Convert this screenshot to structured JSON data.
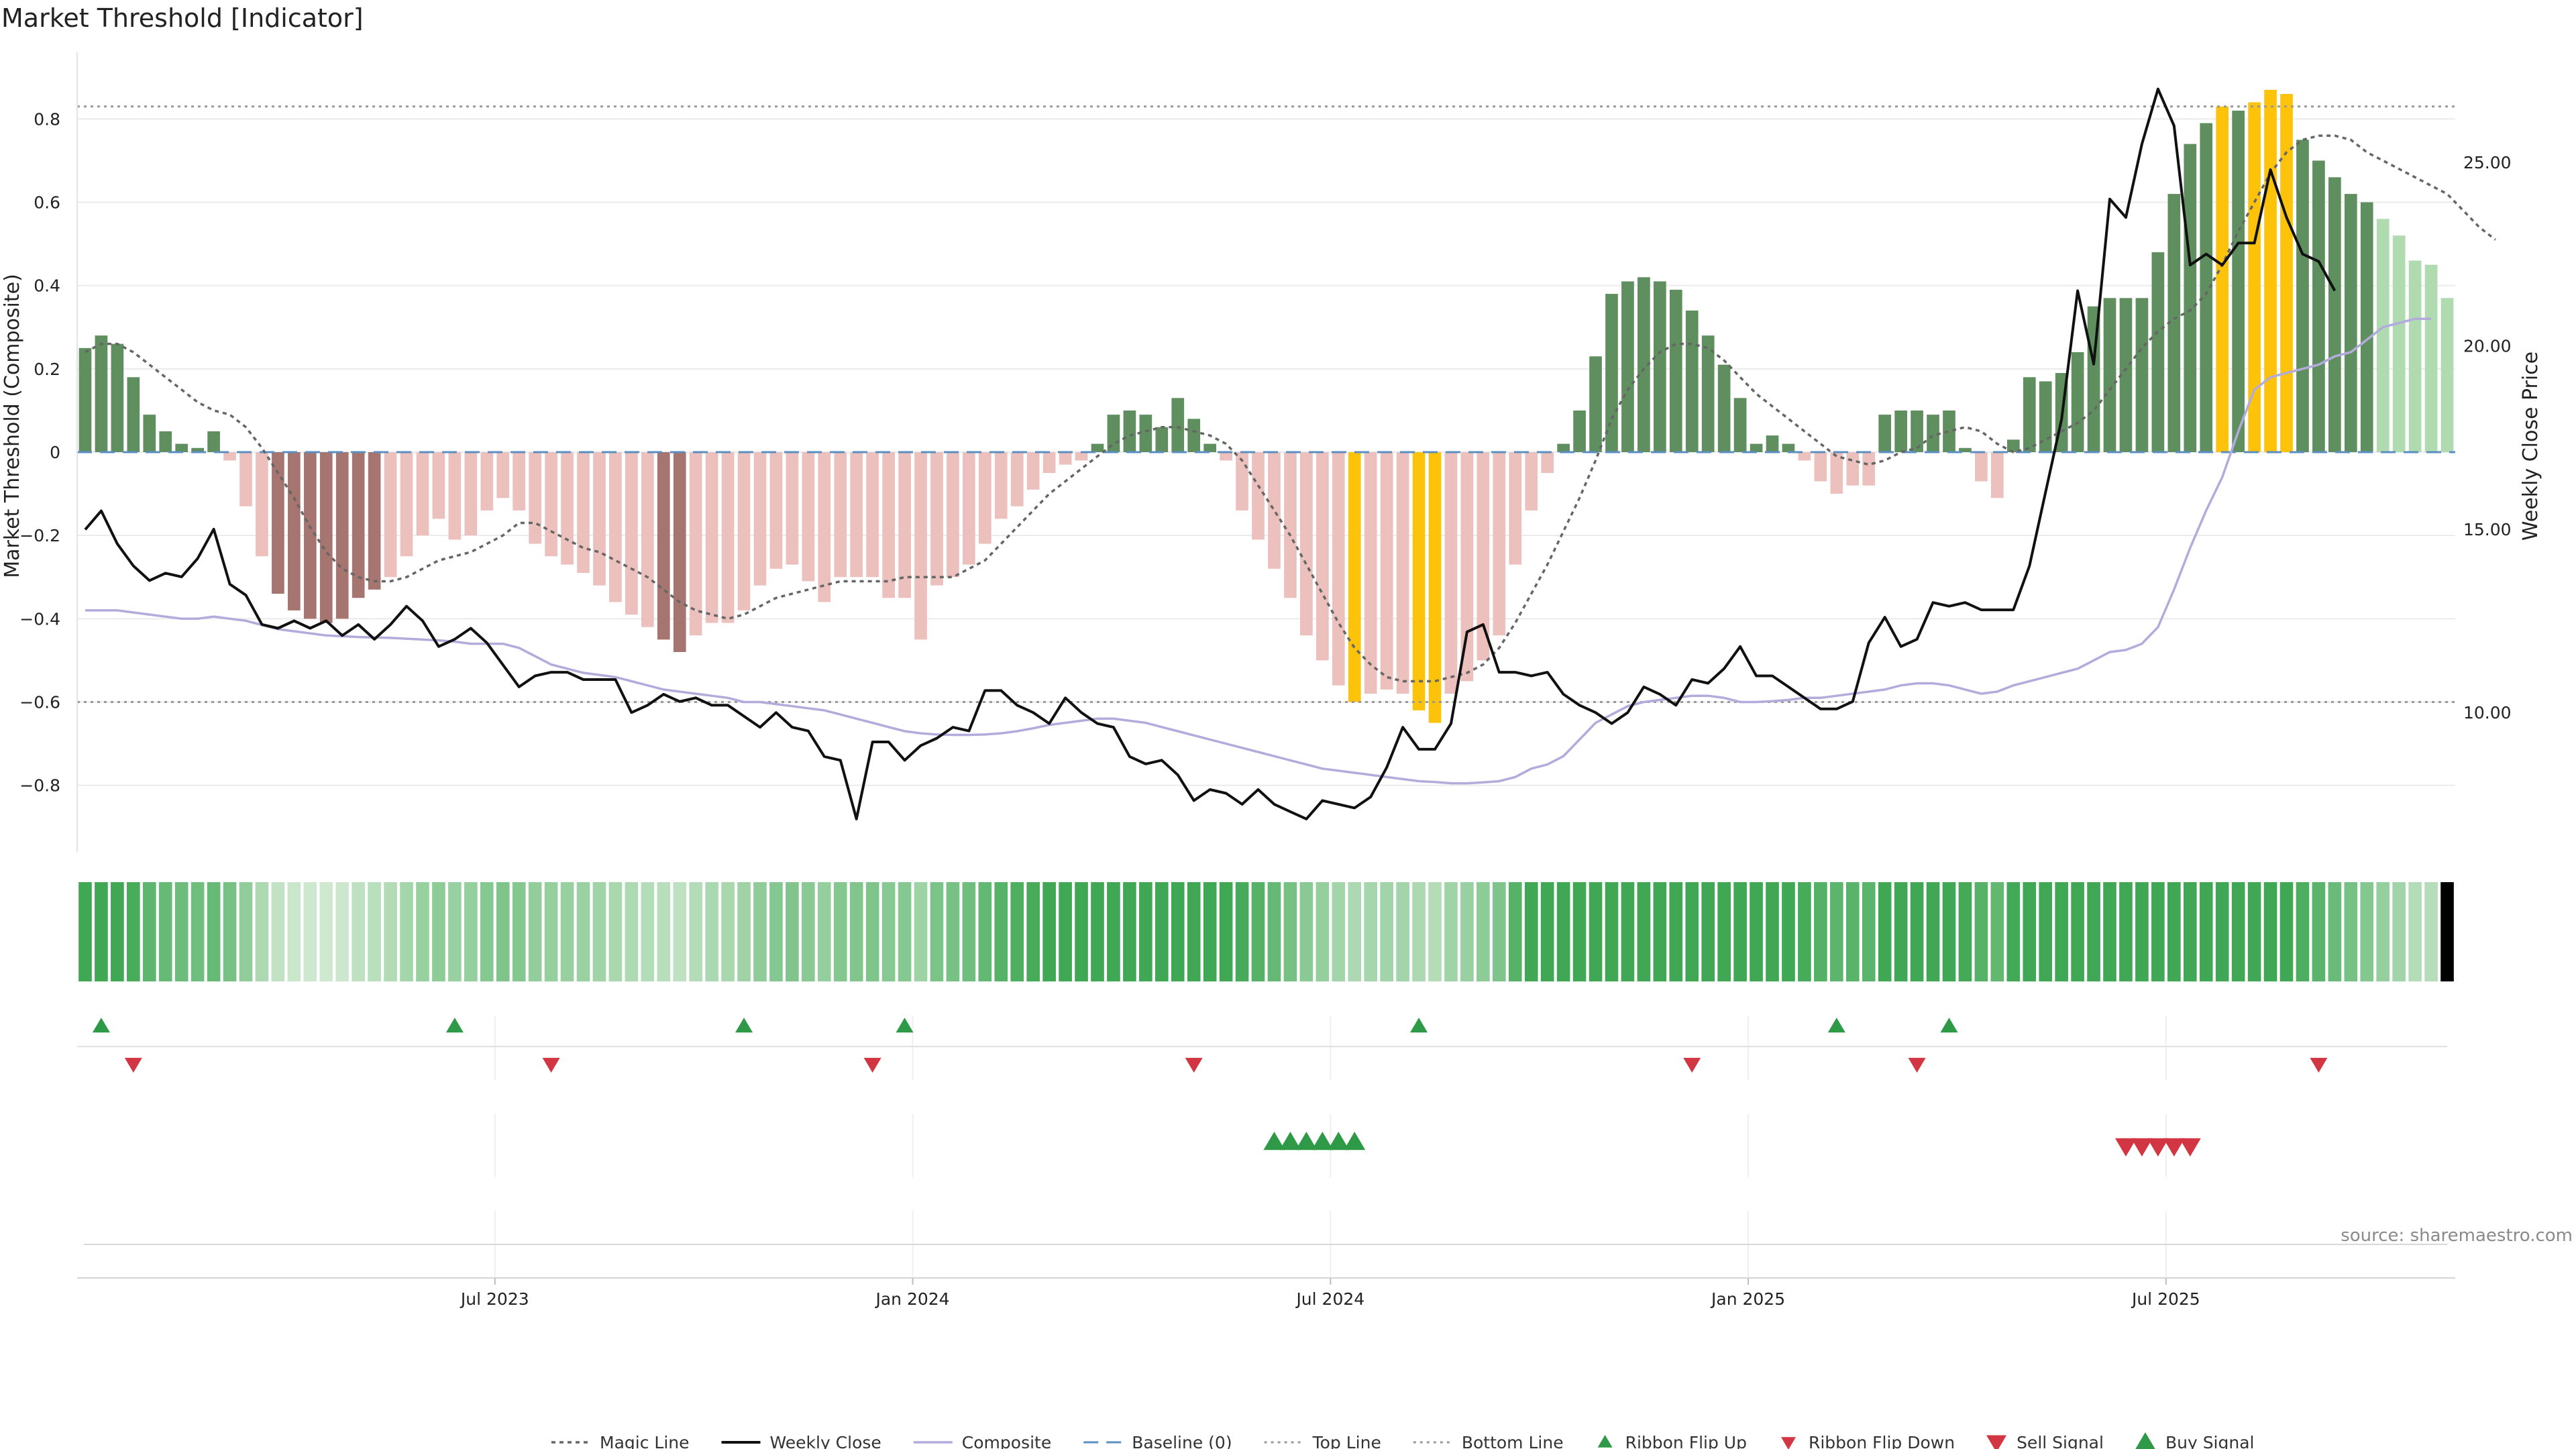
{
  "chart_data": {
    "type": "bar",
    "title": "Market Threshold [Indicator]",
    "ylabel": "Market Threshold (Composite)",
    "y2label": "Weekly Close Price",
    "ylim": [
      -0.96,
      0.96
    ],
    "y2lim": [
      6.2,
      28.0
    ],
    "yticks": [
      -0.8,
      -0.6,
      -0.4,
      -0.2,
      0,
      0.2,
      0.4,
      0.6,
      0.8
    ],
    "ytick_labels": [
      "−0.8",
      "−0.6",
      "−0.4",
      "−0.2",
      "0",
      "0.2",
      "0.4",
      "0.6",
      "0.8"
    ],
    "y2ticks": [
      10,
      15,
      20,
      25
    ],
    "y2tick_labels": [
      "10.00",
      "15.00",
      "20.00",
      "25.00"
    ],
    "xtick_labels": [
      "Jul 2023",
      "Jan 2024",
      "Jul 2024",
      "Jan 2025",
      "Jul 2025"
    ],
    "xtick_weeks": [
      26,
      52,
      78,
      104,
      130
    ],
    "top_line": 0.83,
    "bottom_line": -0.6,
    "baseline": 0,
    "composite": [
      0.25,
      0.28,
      0.26,
      0.18,
      0.09,
      0.05,
      0.02,
      0.01,
      0.05,
      -0.02,
      -0.13,
      -0.25,
      -0.34,
      -0.38,
      -0.4,
      -0.41,
      -0.4,
      -0.35,
      -0.33,
      -0.3,
      -0.25,
      -0.2,
      -0.16,
      -0.21,
      -0.2,
      -0.14,
      -0.11,
      -0.14,
      -0.22,
      -0.25,
      -0.27,
      -0.29,
      -0.32,
      -0.36,
      -0.39,
      -0.42,
      -0.45,
      -0.48,
      -0.44,
      -0.41,
      -0.41,
      -0.38,
      -0.32,
      -0.28,
      -0.27,
      -0.31,
      -0.36,
      -0.3,
      -0.3,
      -0.3,
      -0.35,
      -0.35,
      -0.45,
      -0.32,
      -0.3,
      -0.27,
      -0.22,
      -0.16,
      -0.13,
      -0.09,
      -0.05,
      -0.03,
      -0.02,
      0.02,
      0.09,
      0.1,
      0.09,
      0.06,
      0.13,
      0.08,
      0.02,
      -0.02,
      -0.14,
      -0.21,
      -0.28,
      -0.35,
      -0.44,
      -0.5,
      -0.56,
      -0.6,
      -0.58,
      -0.57,
      -0.58,
      -0.62,
      -0.65,
      -0.58,
      -0.55,
      -0.5,
      -0.44,
      -0.27,
      -0.14,
      -0.05,
      0.02,
      0.1,
      0.23,
      0.38,
      0.41,
      0.42,
      0.41,
      0.39,
      0.34,
      0.28,
      0.21,
      0.13,
      0.02,
      0.04,
      0.02,
      -0.02,
      -0.07,
      -0.1,
      -0.08,
      -0.08,
      0.09,
      0.1,
      0.1,
      0.09,
      0.1,
      0.01,
      -0.07,
      -0.11,
      0.03,
      0.18,
      0.17,
      0.19,
      0.24,
      0.35,
      0.37,
      0.37,
      0.37,
      0.48,
      0.62,
      0.74,
      0.79,
      0.83,
      0.82,
      0.84,
      0.87,
      0.86,
      0.75,
      0.7,
      0.66,
      0.62,
      0.6,
      0.56,
      0.52,
      0.46,
      0.45,
      0.37
    ],
    "composite_avg": [
      -0.38,
      -0.38,
      -0.38,
      -0.385,
      -0.39,
      -0.395,
      -0.4,
      -0.4,
      -0.395,
      -0.4,
      -0.405,
      -0.415,
      -0.425,
      -0.43,
      -0.435,
      -0.44,
      -0.442,
      -0.444,
      -0.445,
      -0.446,
      -0.448,
      -0.45,
      -0.452,
      -0.455,
      -0.46,
      -0.46,
      -0.46,
      -0.47,
      -0.49,
      -0.51,
      -0.52,
      -0.53,
      -0.535,
      -0.54,
      -0.55,
      -0.56,
      -0.57,
      -0.575,
      -0.58,
      -0.585,
      -0.59,
      -0.6,
      -0.6,
      -0.605,
      -0.61,
      -0.615,
      -0.62,
      -0.63,
      -0.64,
      -0.65,
      -0.66,
      -0.67,
      -0.675,
      -0.678,
      -0.679,
      -0.679,
      -0.678,
      -0.675,
      -0.67,
      -0.663,
      -0.655,
      -0.65,
      -0.645,
      -0.64,
      -0.64,
      -0.645,
      -0.65,
      -0.66,
      -0.67,
      -0.68,
      -0.69,
      -0.7,
      -0.71,
      -0.72,
      -0.73,
      -0.74,
      -0.75,
      -0.76,
      -0.765,
      -0.77,
      -0.775,
      -0.78,
      -0.785,
      -0.79,
      -0.792,
      -0.795,
      -0.795,
      -0.793,
      -0.79,
      -0.78,
      -0.76,
      -0.75,
      -0.73,
      -0.69,
      -0.65,
      -0.63,
      -0.61,
      -0.6,
      -0.595,
      -0.59,
      -0.585,
      -0.585,
      -0.59,
      -0.6,
      -0.6,
      -0.598,
      -0.595,
      -0.59,
      -0.59,
      -0.585,
      -0.58,
      -0.575,
      -0.57,
      -0.56,
      -0.555,
      -0.555,
      -0.56,
      -0.57,
      -0.58,
      -0.575,
      -0.56,
      -0.55,
      -0.54,
      -0.53,
      -0.52,
      -0.5,
      -0.48,
      -0.475,
      -0.46,
      -0.42,
      -0.33,
      -0.23,
      -0.14,
      -0.06,
      0.05,
      0.15,
      0.18,
      0.19,
      0.2,
      0.21,
      0.23,
      0.24,
      0.27,
      0.3,
      0.31,
      0.32,
      0.32
    ],
    "magic_line": [
      0.24,
      0.26,
      0.26,
      0.24,
      0.21,
      0.18,
      0.15,
      0.12,
      0.1,
      0.09,
      0.06,
      0.01,
      -0.05,
      -0.11,
      -0.18,
      -0.24,
      -0.28,
      -0.3,
      -0.31,
      -0.31,
      -0.3,
      -0.28,
      -0.26,
      -0.25,
      -0.24,
      -0.22,
      -0.2,
      -0.17,
      -0.17,
      -0.19,
      -0.21,
      -0.23,
      -0.24,
      -0.26,
      -0.28,
      -0.3,
      -0.33,
      -0.36,
      -0.38,
      -0.39,
      -0.4,
      -0.39,
      -0.37,
      -0.35,
      -0.34,
      -0.33,
      -0.32,
      -0.31,
      -0.31,
      -0.31,
      -0.31,
      -0.3,
      -0.3,
      -0.3,
      -0.3,
      -0.28,
      -0.26,
      -0.22,
      -0.18,
      -0.14,
      -0.1,
      -0.07,
      -0.04,
      -0.01,
      0.02,
      0.04,
      0.05,
      0.06,
      0.06,
      0.05,
      0.04,
      0.02,
      -0.02,
      -0.08,
      -0.14,
      -0.2,
      -0.27,
      -0.34,
      -0.41,
      -0.47,
      -0.51,
      -0.54,
      -0.55,
      -0.55,
      -0.55,
      -0.54,
      -0.53,
      -0.51,
      -0.47,
      -0.41,
      -0.34,
      -0.27,
      -0.19,
      -0.11,
      -0.02,
      0.08,
      0.15,
      0.2,
      0.24,
      0.26,
      0.26,
      0.25,
      0.22,
      0.18,
      0.14,
      0.11,
      0.08,
      0.05,
      0.02,
      -0.01,
      -0.02,
      -0.03,
      -0.02,
      0.0,
      0.01,
      0.04,
      0.05,
      0.06,
      0.05,
      0.02,
      0.0,
      0.01,
      0.03,
      0.05,
      0.07,
      0.1,
      0.15,
      0.2,
      0.25,
      0.29,
      0.32,
      0.34,
      0.38,
      0.45,
      0.53,
      0.6,
      0.67,
      0.72,
      0.75,
      0.76,
      0.76,
      0.75,
      0.72,
      0.7,
      0.68,
      0.66,
      0.64,
      0.62,
      0.58,
      0.54,
      0.51
    ],
    "weekly_close": [
      14.99,
      15.5,
      14.6,
      14.0,
      13.6,
      13.8,
      13.7,
      14.2,
      15.0,
      13.5,
      13.2,
      12.4,
      12.3,
      12.5,
      12.3,
      12.5,
      12.1,
      12.4,
      12.0,
      12.4,
      12.9,
      12.5,
      11.8,
      12.0,
      12.3,
      11.9,
      11.3,
      10.7,
      11.0,
      11.1,
      11.1,
      10.9,
      10.9,
      10.9,
      10.0,
      10.2,
      10.5,
      10.3,
      10.4,
      10.2,
      10.2,
      9.9,
      9.6,
      10.0,
      9.6,
      9.5,
      8.8,
      8.7,
      7.1,
      9.2,
      9.2,
      8.7,
      9.1,
      9.3,
      9.6,
      9.5,
      10.6,
      10.6,
      10.2,
      10.0,
      9.7,
      10.4,
      10.0,
      9.7,
      9.6,
      8.8,
      8.6,
      8.7,
      8.3,
      7.6,
      7.9,
      7.8,
      7.5,
      7.9,
      7.5,
      7.3,
      7.1,
      7.6,
      7.5,
      7.4,
      7.7,
      8.5,
      9.6,
      9.0,
      9.0,
      9.7,
      12.2,
      12.4,
      11.1,
      11.1,
      11.0,
      11.1,
      10.5,
      10.2,
      10.0,
      9.7,
      10.0,
      10.7,
      10.5,
      10.2,
      10.9,
      10.8,
      11.2,
      11.8,
      11.0,
      11.0,
      10.7,
      10.4,
      10.1,
      10.1,
      10.3,
      11.9,
      12.6,
      11.8,
      12.0,
      13.0,
      12.9,
      13.0,
      12.8,
      12.8,
      12.8,
      14.0,
      16.0,
      18.0,
      21.5,
      19.5,
      24.0,
      23.5,
      25.5,
      27.0,
      26.0,
      22.2,
      22.5,
      22.2,
      22.8,
      22.8,
      24.8,
      23.5,
      22.5,
      22.3,
      21.5
    ],
    "ribbon_flip_up_weeks": [
      1,
      23,
      41,
      51,
      83,
      109,
      116
    ],
    "ribbon_flip_down_weeks": [
      3,
      29,
      49,
      69,
      100,
      114,
      139
    ],
    "buy_signal_weeks": [
      74,
      75,
      76,
      77,
      78,
      79
    ],
    "sell_signal_weeks": [
      127,
      128,
      129,
      130,
      131
    ],
    "legend": [
      "Magic Line",
      "Weekly Close",
      "Composite",
      "Baseline (0)",
      "Top Line",
      "Bottom Line",
      "Ribbon Flip Up",
      "Ribbon Flip Down",
      "Sell Signal",
      "Buy Signal"
    ],
    "legend_placement": "bottom-center"
  },
  "colors": {
    "strong_pos": "#5f8f5f",
    "weak_pos": "#b0dbb0",
    "strong_neg": "#a77570",
    "weak_neg": "#ecc0bc",
    "extreme": "#fcc30a",
    "composite": "#b3abdc",
    "weekly_close": "#111111",
    "magic_line": "#666666",
    "baseline": "#5b8fc2",
    "threshold_lines": "#999999",
    "buy": "#2e9a48",
    "sell": "#d23642",
    "grid": "#ebebeb"
  },
  "source_text": "source: sharemaestro.com"
}
